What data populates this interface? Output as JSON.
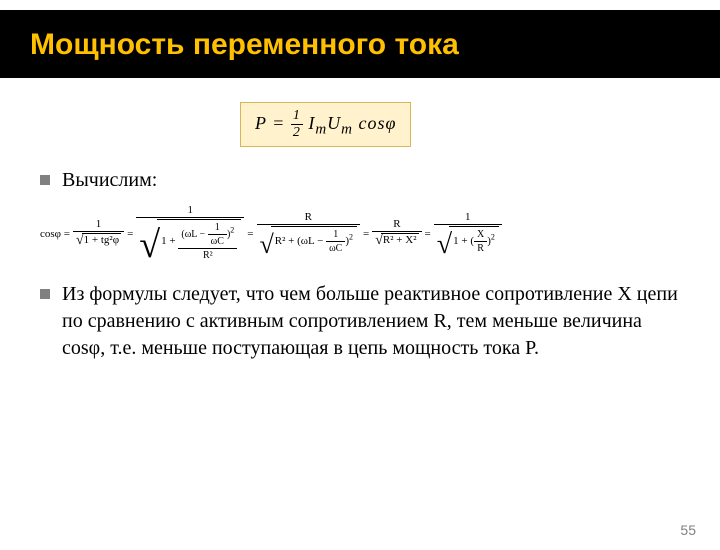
{
  "title": "Мощность переменного тока",
  "formula_box_html": "P = <span class='frac-inline'><span class='n'>1</span><span class='d'>2</span></span> I<sub>m</sub>U<sub>m</sub> cosφ",
  "bullets": {
    "b1": "Вычислим:",
    "b2": "Из формулы следует, что чем больше реактивное сопротивление X цепи по сравнению с активным сопротивлением R, тем меньше величина cosφ, т.е. меньше поступающая в цепь мощность тока P."
  },
  "eq": {
    "lhs": "cosφ =",
    "term1_num": "1",
    "term1_den_inner": "1 + tg²φ",
    "eq_sign": "=",
    "term2_num": "1",
    "term2_one": "1 +",
    "term2_paren": "ωL − ",
    "term2_frac_num": "1",
    "term2_frac_den": "ωC",
    "term2_den_R2": "R²",
    "term3_num": "R",
    "term3_inner": "R² + ",
    "term3_paren": "ωL − ",
    "term4_num": "R",
    "term4_den": "R² + X²",
    "term5_num": "1",
    "term5_one": "1 + ",
    "term5_frac_num": "X",
    "term5_frac_den": "R"
  },
  "pagenum": "55",
  "colors": {
    "title_bg": "#000000",
    "title_fg": "#ffc000",
    "box_bg": "#fff2cc",
    "box_border": "#d6b656",
    "bullet": "#808080",
    "text": "#000000"
  }
}
